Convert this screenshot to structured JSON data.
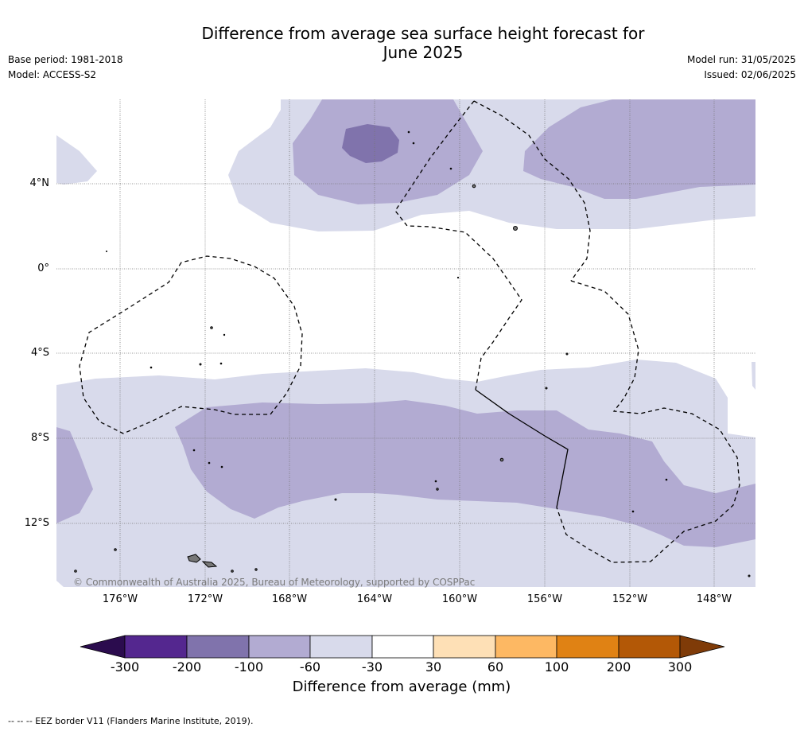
{
  "title_line1": "Difference from average sea surface height forecast for",
  "title_line2": "June 2025",
  "meta_left": [
    "Base period: 1981-2018",
    "Model: ACCESS-S2"
  ],
  "meta_right": [
    "Model run: 31/05/2025",
    "Issued: 02/06/2025"
  ],
  "lat_labels": [
    "4°N",
    "0°",
    "4°S",
    "8°S",
    "12°S"
  ],
  "lon_labels": [
    "176°W",
    "172°W",
    "168°W",
    "164°W",
    "160°W",
    "156°W",
    "152°W",
    "148°W"
  ],
  "copyright": "© Commonwealth of Australia 2025, Bureau of Meteorology, supported by COSPPac",
  "colorbar": {
    "ticks": [
      "-300",
      "-200",
      "-100",
      "-60",
      "-30",
      "30",
      "60",
      "100",
      "200",
      "300"
    ],
    "colors": [
      "#2b0c4e",
      "#54278f",
      "#8073ac",
      "#b2abd2",
      "#d8daeb",
      "#ffffff",
      "#fee0b6",
      "#fdb863",
      "#e08214",
      "#b35806",
      "#7f3b08"
    ],
    "title": "Difference from average (mm)"
  },
  "footnote": "--  --  -- EEZ border V11 (Flanders Marine Institute, 2019)."
}
